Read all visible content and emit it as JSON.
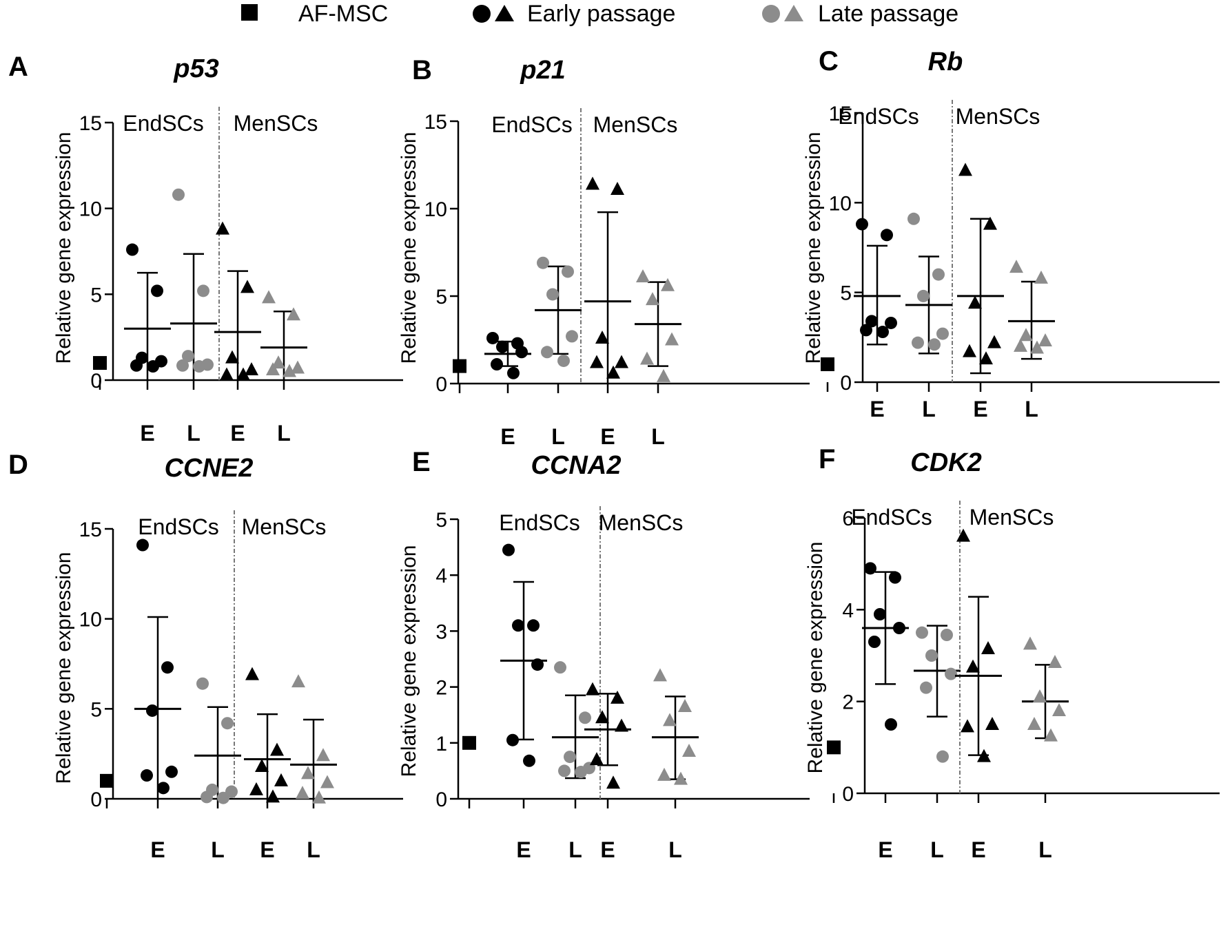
{
  "legend": {
    "items": [
      {
        "label": "AF-MSC",
        "kind": "square",
        "color": "#000000"
      },
      {
        "label": "Early passage",
        "kind": "circle-triangle",
        "color": "#000000"
      },
      {
        "label": "Late passage",
        "kind": "circle-triangle",
        "color": "#8c8c8c"
      }
    ]
  },
  "colors": {
    "early": "#000000",
    "late": "#8c8c8c",
    "divider": "#777777"
  },
  "chart_data": [
    {
      "panel": "A",
      "title": "p53",
      "type": "scatter",
      "ylabel": "Relative gene expression",
      "ylim": [
        0,
        15
      ],
      "yticks": [
        0,
        5,
        10,
        15
      ],
      "group_labels": [
        "EndSCs",
        "MenSCs"
      ],
      "categories": [
        "",
        "E",
        "L",
        "E",
        "L"
      ],
      "control": {
        "label": "AF-MSC",
        "value": 1
      },
      "series": [
        {
          "name": "EndSCs Early",
          "shape": "circle",
          "color": "early",
          "points": [
            7.6,
            5.2,
            1.3,
            1.1,
            0.85,
            0.8
          ],
          "mean": 3.0,
          "sd": [
            6.25,
            0.0
          ]
        },
        {
          "name": "EndSCs Late",
          "shape": "circle",
          "color": "late",
          "points": [
            10.8,
            5.2,
            1.4,
            0.9,
            0.85,
            0.8
          ],
          "mean": 3.3,
          "sd": [
            7.35,
            0.0
          ]
        },
        {
          "name": "MenSCs Early",
          "shape": "triangle",
          "color": "early",
          "points": [
            8.8,
            5.4,
            1.3,
            0.6,
            0.3,
            0.3
          ],
          "mean": 2.8,
          "sd": [
            6.35,
            0.0
          ]
        },
        {
          "name": "MenSCs Late",
          "shape": "triangle",
          "color": "late",
          "points": [
            4.8,
            3.8,
            1.0,
            0.7,
            0.6,
            0.5
          ],
          "mean": 1.9,
          "sd": [
            4.0,
            0.0
          ]
        }
      ]
    },
    {
      "panel": "B",
      "title": "p21",
      "type": "scatter",
      "ylabel": "Relative gene expression",
      "ylim": [
        0,
        15
      ],
      "yticks": [
        0,
        5,
        10,
        15
      ],
      "group_labels": [
        "EndSCs",
        "MenSCs"
      ],
      "categories": [
        "",
        "E",
        "L",
        "E",
        "L"
      ],
      "control": {
        "label": "AF-MSC",
        "value": 1
      },
      "series": [
        {
          "name": "EndSCs Early",
          "shape": "circle",
          "color": "early",
          "points": [
            2.6,
            2.3,
            2.1,
            1.8,
            1.1,
            0.6
          ],
          "mean": 1.7,
          "sd": [
            2.4,
            1.0
          ]
        },
        {
          "name": "EndSCs Late",
          "shape": "circle",
          "color": "late",
          "points": [
            6.9,
            6.4,
            5.1,
            2.7,
            1.8,
            1.3
          ],
          "mean": 4.2,
          "sd": [
            6.7,
            1.7
          ]
        },
        {
          "name": "MenSCs Early",
          "shape": "triangle",
          "color": "early",
          "points": [
            11.4,
            11.1,
            2.6,
            1.2,
            1.2,
            0.6
          ],
          "mean": 4.7,
          "sd": [
            9.8,
            0.0
          ]
        },
        {
          "name": "MenSCs Late",
          "shape": "triangle",
          "color": "late",
          "points": [
            6.1,
            5.6,
            4.8,
            2.5,
            1.4,
            0.4
          ],
          "mean": 3.4,
          "sd": [
            5.8,
            1.0
          ]
        }
      ]
    },
    {
      "panel": "C",
      "title": "Rb",
      "type": "scatter",
      "ylabel": "Relative gene expression",
      "ylim": [
        0,
        15
      ],
      "yticks": [
        0,
        5,
        10,
        15
      ],
      "group_labels": [
        "EndSCs",
        "MenSCs"
      ],
      "categories": [
        "",
        "E",
        "L",
        "E",
        "L"
      ],
      "control": {
        "label": "AF-MSC",
        "value": 1
      },
      "series": [
        {
          "name": "EndSCs Early",
          "shape": "circle",
          "color": "early",
          "points": [
            8.8,
            8.2,
            3.4,
            3.3,
            2.9,
            2.8
          ],
          "mean": 4.8,
          "sd": [
            7.6,
            2.1
          ]
        },
        {
          "name": "EndSCs Late",
          "shape": "circle",
          "color": "late",
          "points": [
            9.1,
            6.0,
            4.8,
            2.7,
            2.2,
            2.1
          ],
          "mean": 4.3,
          "sd": [
            7.0,
            1.6
          ]
        },
        {
          "name": "MenSCs Early",
          "shape": "triangle",
          "color": "early",
          "points": [
            11.8,
            8.8,
            4.4,
            2.2,
            1.7,
            1.3
          ],
          "mean": 4.8,
          "sd": [
            9.1,
            0.5
          ]
        },
        {
          "name": "MenSCs Late",
          "shape": "triangle",
          "color": "late",
          "points": [
            6.4,
            5.8,
            2.6,
            2.3,
            2.0,
            1.9
          ],
          "mean": 3.4,
          "sd": [
            5.6,
            1.3
          ]
        }
      ]
    },
    {
      "panel": "D",
      "title": "CCNE2",
      "type": "scatter",
      "ylabel": "Relative gene expression",
      "ylim": [
        0,
        15
      ],
      "yticks": [
        0,
        5,
        10,
        15
      ],
      "group_labels": [
        "EndSCs",
        "MenSCs"
      ],
      "categories": [
        "",
        "E",
        "L",
        "E",
        "L"
      ],
      "control": {
        "label": "AF-MSC",
        "value": 1
      },
      "series": [
        {
          "name": "EndSCs Early",
          "shape": "circle",
          "color": "early",
          "points": [
            14.1,
            7.3,
            4.9,
            1.5,
            1.3,
            0.6
          ],
          "mean": 5.0,
          "sd": [
            10.1,
            0.0
          ]
        },
        {
          "name": "EndSCs Late",
          "shape": "circle",
          "color": "late",
          "points": [
            6.4,
            4.2,
            0.5,
            0.4,
            0.1,
            0.05
          ],
          "mean": 2.4,
          "sd": [
            5.1,
            0.0
          ]
        },
        {
          "name": "MenSCs Early",
          "shape": "triangle",
          "color": "early",
          "points": [
            6.9,
            2.7,
            1.8,
            1.0,
            0.5,
            0.1
          ],
          "mean": 2.2,
          "sd": [
            4.7,
            0.0
          ]
        },
        {
          "name": "MenSCs Late",
          "shape": "triangle",
          "color": "late",
          "points": [
            6.5,
            2.4,
            1.4,
            0.9,
            0.3,
            0.05
          ],
          "mean": 1.9,
          "sd": [
            4.4,
            0.0
          ]
        }
      ]
    },
    {
      "panel": "E",
      "title": "CCNA2",
      "type": "scatter",
      "ylabel": "Relative gene expression",
      "ylim": [
        0,
        5
      ],
      "yticks": [
        0,
        1,
        2,
        3,
        4,
        5
      ],
      "group_labels": [
        "EndSCs",
        "MenSCs"
      ],
      "categories": [
        "",
        "E",
        "L",
        "E",
        "L"
      ],
      "control": {
        "label": "AF-MSC",
        "value": 1
      },
      "series": [
        {
          "name": "EndSCs Early",
          "shape": "circle",
          "color": "early",
          "points": [
            4.45,
            3.1,
            3.1,
            2.4,
            1.05,
            0.68
          ],
          "mean": 2.47,
          "sd": [
            3.88,
            1.06
          ]
        },
        {
          "name": "EndSCs Late",
          "shape": "circle",
          "color": "late",
          "points": [
            2.35,
            1.45,
            0.75,
            0.55,
            0.5,
            0.48
          ],
          "mean": 1.1,
          "sd": [
            1.85,
            0.37
          ]
        },
        {
          "name": "MenSCs Early",
          "shape": "triangle",
          "color": "early",
          "points": [
            1.95,
            1.8,
            1.45,
            1.3,
            0.7,
            0.28
          ],
          "mean": 1.24,
          "sd": [
            1.88,
            0.6
          ]
        },
        {
          "name": "MenSCs Late",
          "shape": "triangle",
          "color": "late",
          "points": [
            2.2,
            1.65,
            1.4,
            0.85,
            0.42,
            0.35
          ],
          "mean": 1.1,
          "sd": [
            1.83,
            0.35
          ]
        }
      ]
    },
    {
      "panel": "F",
      "title": "CDK2",
      "type": "scatter",
      "ylabel": "Relative gene expression",
      "ylim": [
        0,
        6
      ],
      "yticks": [
        0,
        2,
        4,
        6
      ],
      "group_labels": [
        "EndSCs",
        "MenSCs"
      ],
      "categories": [
        "",
        "E",
        "L",
        "E",
        "L"
      ],
      "control": {
        "label": "AF-MSC",
        "value": 1
      },
      "series": [
        {
          "name": "EndSCs Early",
          "shape": "circle",
          "color": "early",
          "points": [
            4.9,
            4.7,
            3.9,
            3.6,
            3.3,
            1.5
          ],
          "mean": 3.6,
          "sd": [
            4.82,
            2.38
          ]
        },
        {
          "name": "EndSCs Late",
          "shape": "circle",
          "color": "late",
          "points": [
            3.5,
            3.45,
            3.0,
            2.6,
            2.3,
            0.8
          ],
          "mean": 2.67,
          "sd": [
            3.65,
            1.67
          ]
        },
        {
          "name": "MenSCs Early",
          "shape": "triangle",
          "color": "early",
          "points": [
            5.6,
            3.15,
            2.75,
            1.5,
            1.45,
            0.8
          ],
          "mean": 2.56,
          "sd": [
            4.28,
            0.83
          ]
        },
        {
          "name": "MenSCs Late",
          "shape": "triangle",
          "color": "late",
          "points": [
            3.25,
            2.85,
            2.1,
            1.8,
            1.5,
            1.25
          ],
          "mean": 2.0,
          "sd": [
            2.8,
            1.2
          ]
        }
      ]
    }
  ]
}
